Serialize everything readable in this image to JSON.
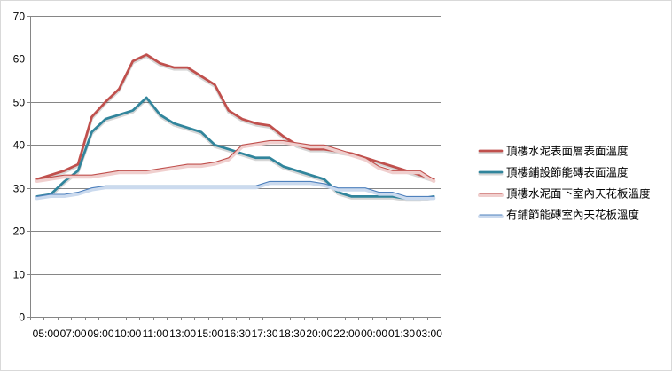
{
  "chart_data": {
    "type": "line",
    "categories": [
      "05:00",
      "",
      "07:00",
      "",
      "09:00",
      "",
      "10:00",
      "",
      "11:00",
      "",
      "13:00",
      "",
      "15:00",
      "",
      "16:30",
      "",
      "17:30",
      "",
      "18:30",
      "",
      "20:00",
      "",
      "22:00",
      "",
      "00:00",
      "",
      "01:30",
      "",
      "03:00",
      ""
    ],
    "ylim": [
      0,
      70
    ],
    "yticks": [
      0,
      10,
      20,
      30,
      40,
      50,
      60,
      70
    ],
    "grid": "horizontal",
    "legend_position": "right",
    "series": [
      {
        "name": "頂樓水泥表面層表面溫度",
        "color": "#C0504D",
        "values": [
          32,
          33,
          34,
          35.5,
          46.5,
          50,
          53,
          59.5,
          61,
          59,
          58,
          58,
          56,
          54,
          48,
          46,
          45,
          44.5,
          42,
          40,
          39,
          39,
          38.5,
          38,
          37,
          36,
          35,
          34,
          33,
          32
        ]
      },
      {
        "name": "頂樓鋪設節能磚表面溫度",
        "color": "#31859C",
        "values": [
          28,
          28.5,
          31.5,
          34,
          43,
          46,
          47,
          48,
          51,
          47,
          45,
          44,
          43,
          40,
          39,
          38,
          37,
          37,
          35,
          34,
          33,
          32,
          29,
          28,
          28,
          28,
          28,
          27.5,
          27.5,
          28
        ]
      },
      {
        "name": "頂樓水泥面下室內天花板溫度",
        "color": "#C0504D",
        "values": [
          32,
          32.5,
          33,
          33,
          33,
          33.5,
          34,
          34,
          34,
          34.5,
          35,
          35.5,
          35.5,
          36,
          37,
          40,
          40.5,
          41,
          41,
          40.5,
          40,
          40,
          39,
          38,
          37,
          35,
          34,
          34,
          34,
          32
        ]
      },
      {
        "name": "有鋪節能磚室內天花板溫度",
        "color": "#4F81BD",
        "values": [
          28,
          28.5,
          28.5,
          29,
          30,
          30.5,
          30.5,
          30.5,
          30.5,
          30.5,
          30.5,
          30.5,
          30.5,
          30.5,
          30.5,
          30.5,
          30.5,
          31.5,
          31.5,
          31.5,
          31.5,
          31,
          30,
          30,
          30,
          29,
          29,
          28,
          28,
          28
        ]
      }
    ]
  }
}
